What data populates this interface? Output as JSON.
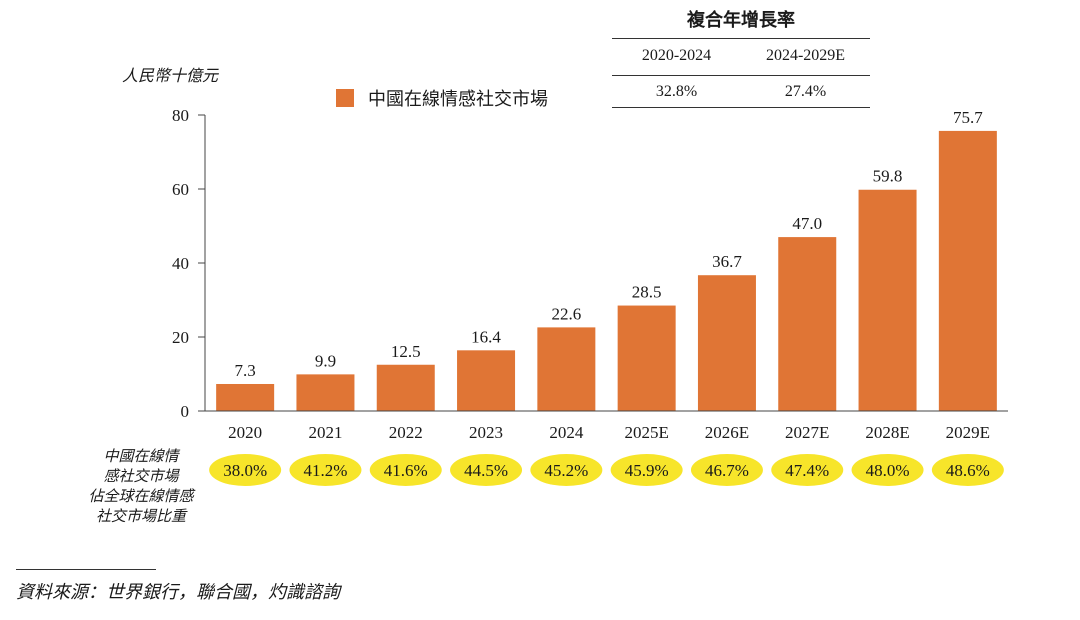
{
  "cagr_table": {
    "title": "複合年增長率",
    "headers": [
      "2020-2024",
      "2024-2029E"
    ],
    "values": [
      "32.8%",
      "27.4%"
    ]
  },
  "share_row": {
    "label_lines": [
      "中國在線情",
      "感社交市場",
      "佔全球在線情感",
      "社交市場比重"
    ],
    "values": [
      "38.0%",
      "41.2%",
      "41.6%",
      "44.5%",
      "45.2%",
      "45.9%",
      "46.7%",
      "47.4%",
      "48.0%",
      "48.6%"
    ],
    "badge_color": "#f7e52a"
  },
  "source": "資料來源：世界銀行，聯合國，灼識諮詢",
  "chart_data": {
    "type": "bar",
    "title": "",
    "ylabel": "人民幣十億元",
    "xlabel": "",
    "categories": [
      "2020",
      "2021",
      "2022",
      "2023",
      "2024",
      "2025E",
      "2026E",
      "2027E",
      "2028E",
      "2029E"
    ],
    "series": [
      {
        "name": "中國在線情感社交市場",
        "color": "#e07535",
        "values": [
          7.3,
          9.9,
          12.5,
          16.4,
          22.6,
          28.5,
          36.7,
          47.0,
          59.8,
          75.7
        ],
        "labels": [
          "7.3",
          "9.9",
          "12.5",
          "16.4",
          "22.6",
          "28.5",
          "36.7",
          "47.0",
          "59.8",
          "75.7"
        ]
      }
    ],
    "ylim": [
      0,
      80
    ],
    "yticks": [
      0,
      20,
      40,
      60,
      80
    ],
    "grid": false,
    "legend": "top-center"
  }
}
